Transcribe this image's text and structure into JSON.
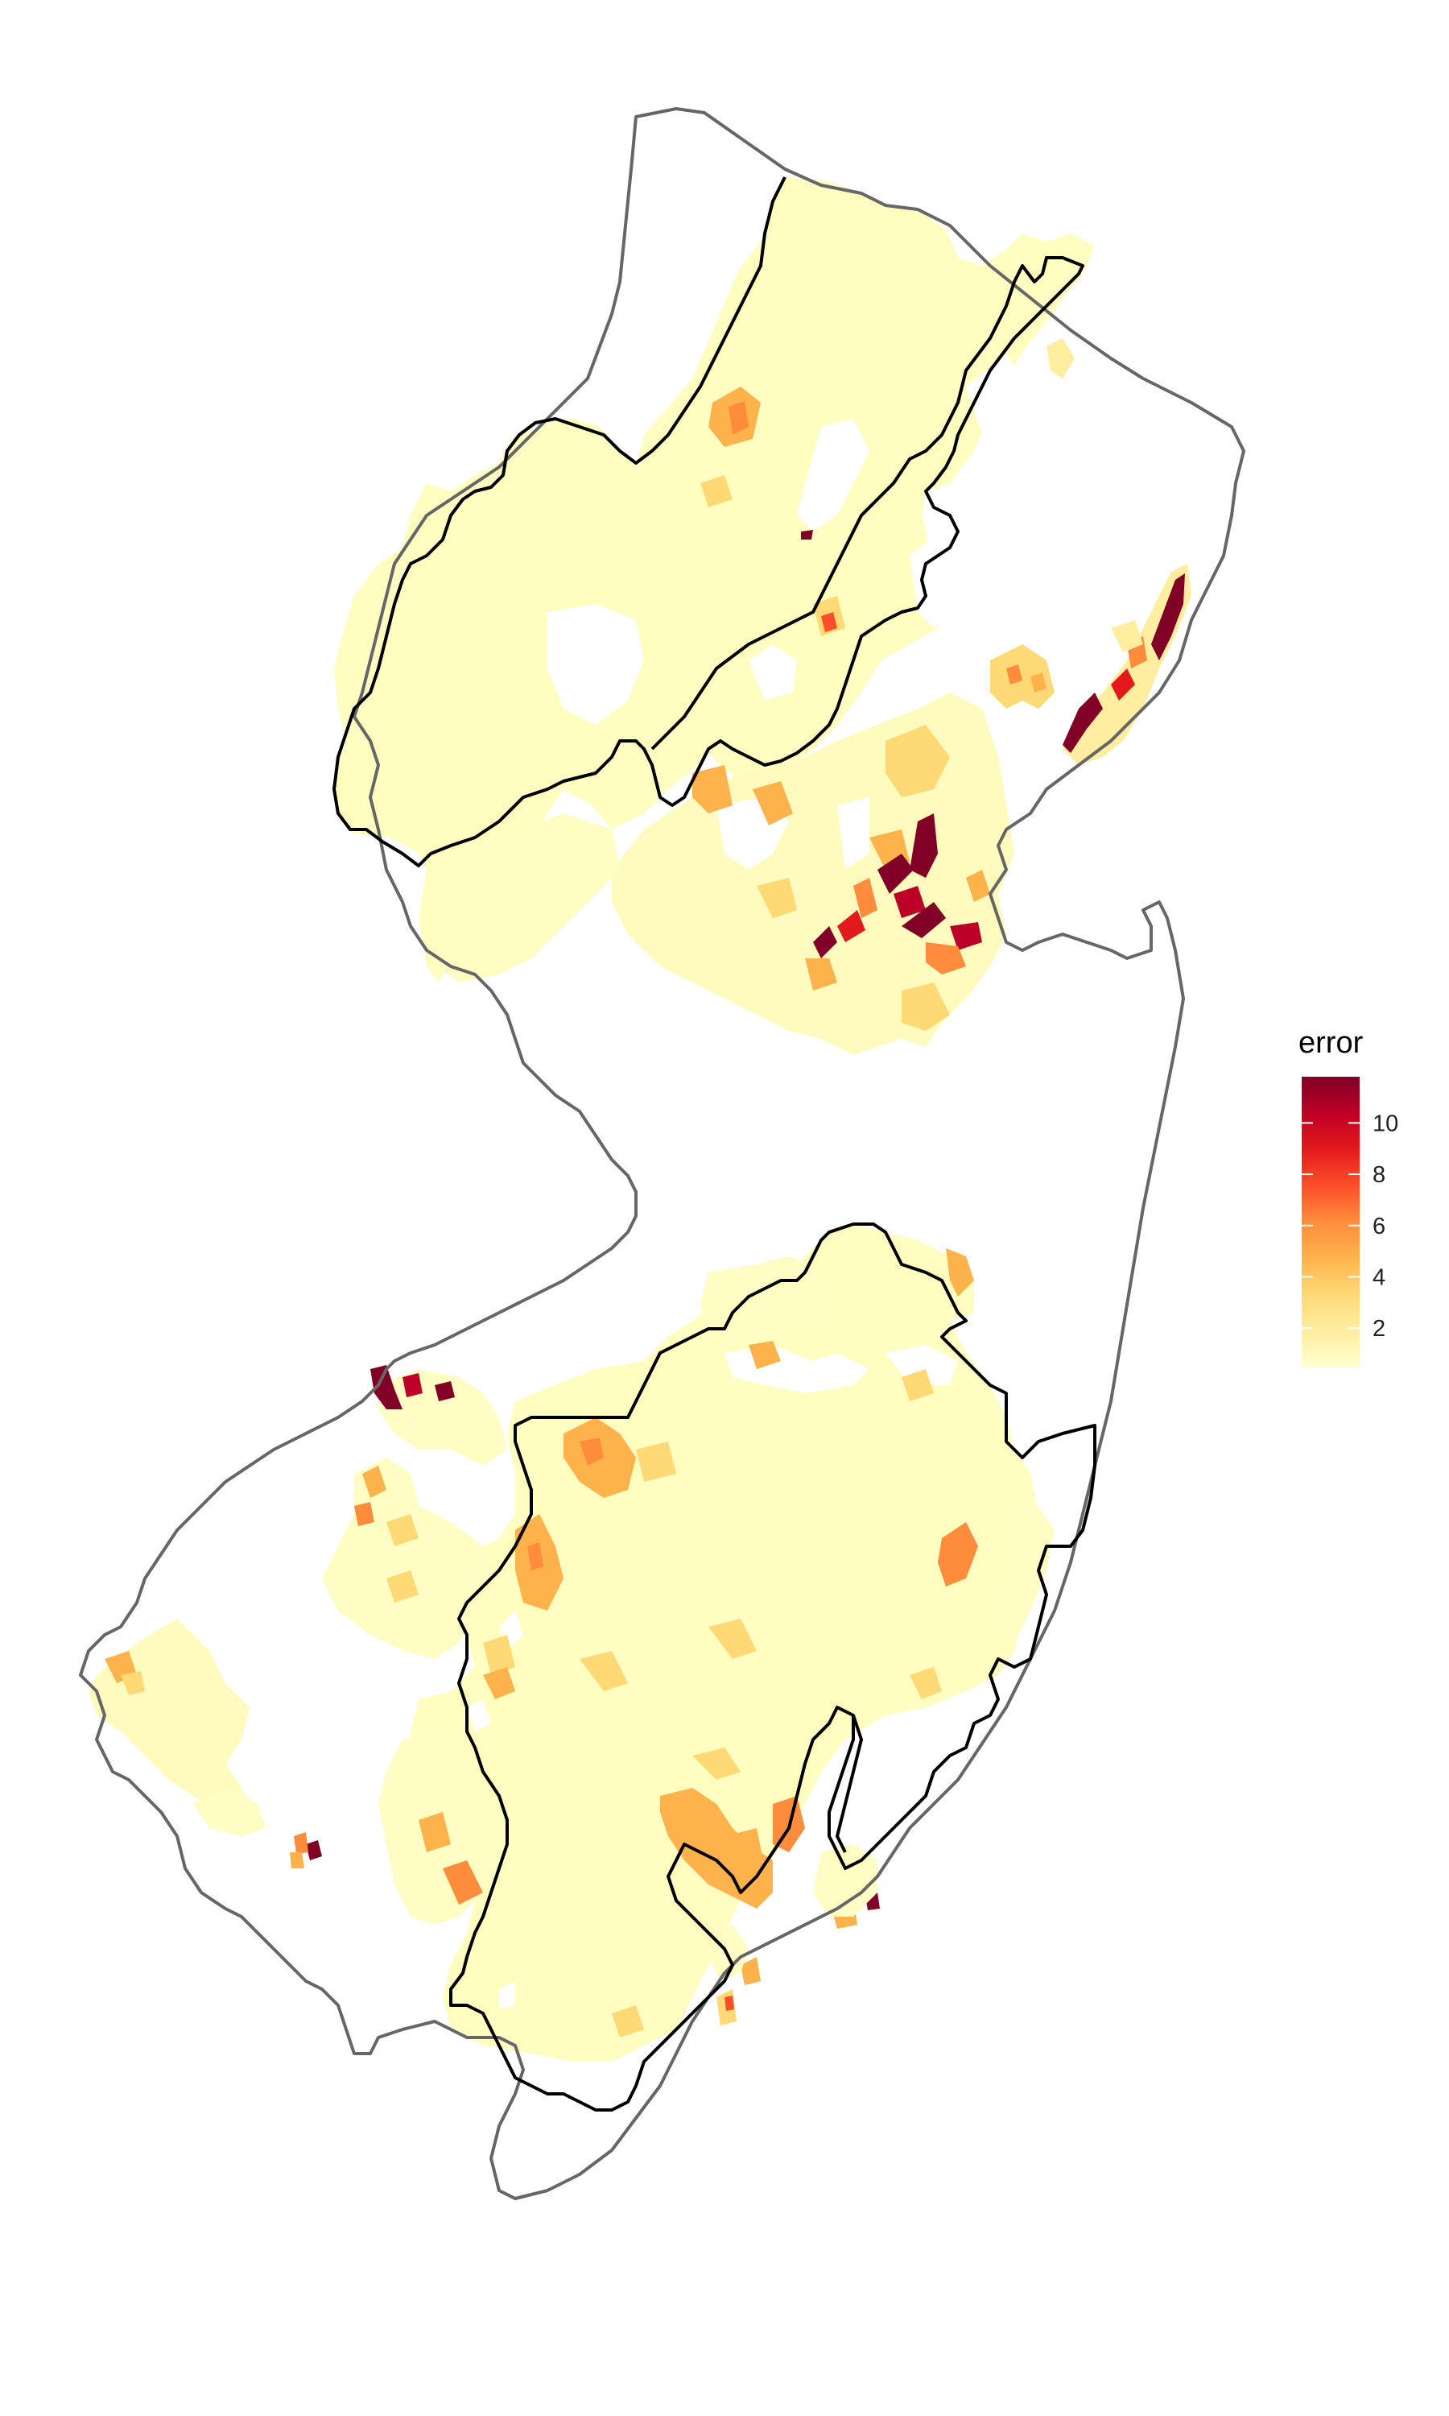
{
  "legend": {
    "title": "error",
    "min": 0.5,
    "max": 11.8,
    "ticks": [
      {
        "value": 2,
        "label": "2"
      },
      {
        "value": 4,
        "label": "4"
      },
      {
        "value": 6,
        "label": "6"
      },
      {
        "value": 8,
        "label": "8"
      },
      {
        "value": 10,
        "label": "10"
      }
    ],
    "colors": [
      "#FFFFCC",
      "#FFEDA0",
      "#FED976",
      "#FEB24C",
      "#FD8D3C",
      "#FC4E2A",
      "#E31A1C",
      "#BD0026",
      "#800026"
    ]
  },
  "map": {
    "outline_color": "#666666",
    "region_border_color": "#000000",
    "base_fill": "#FFFDC0"
  }
}
